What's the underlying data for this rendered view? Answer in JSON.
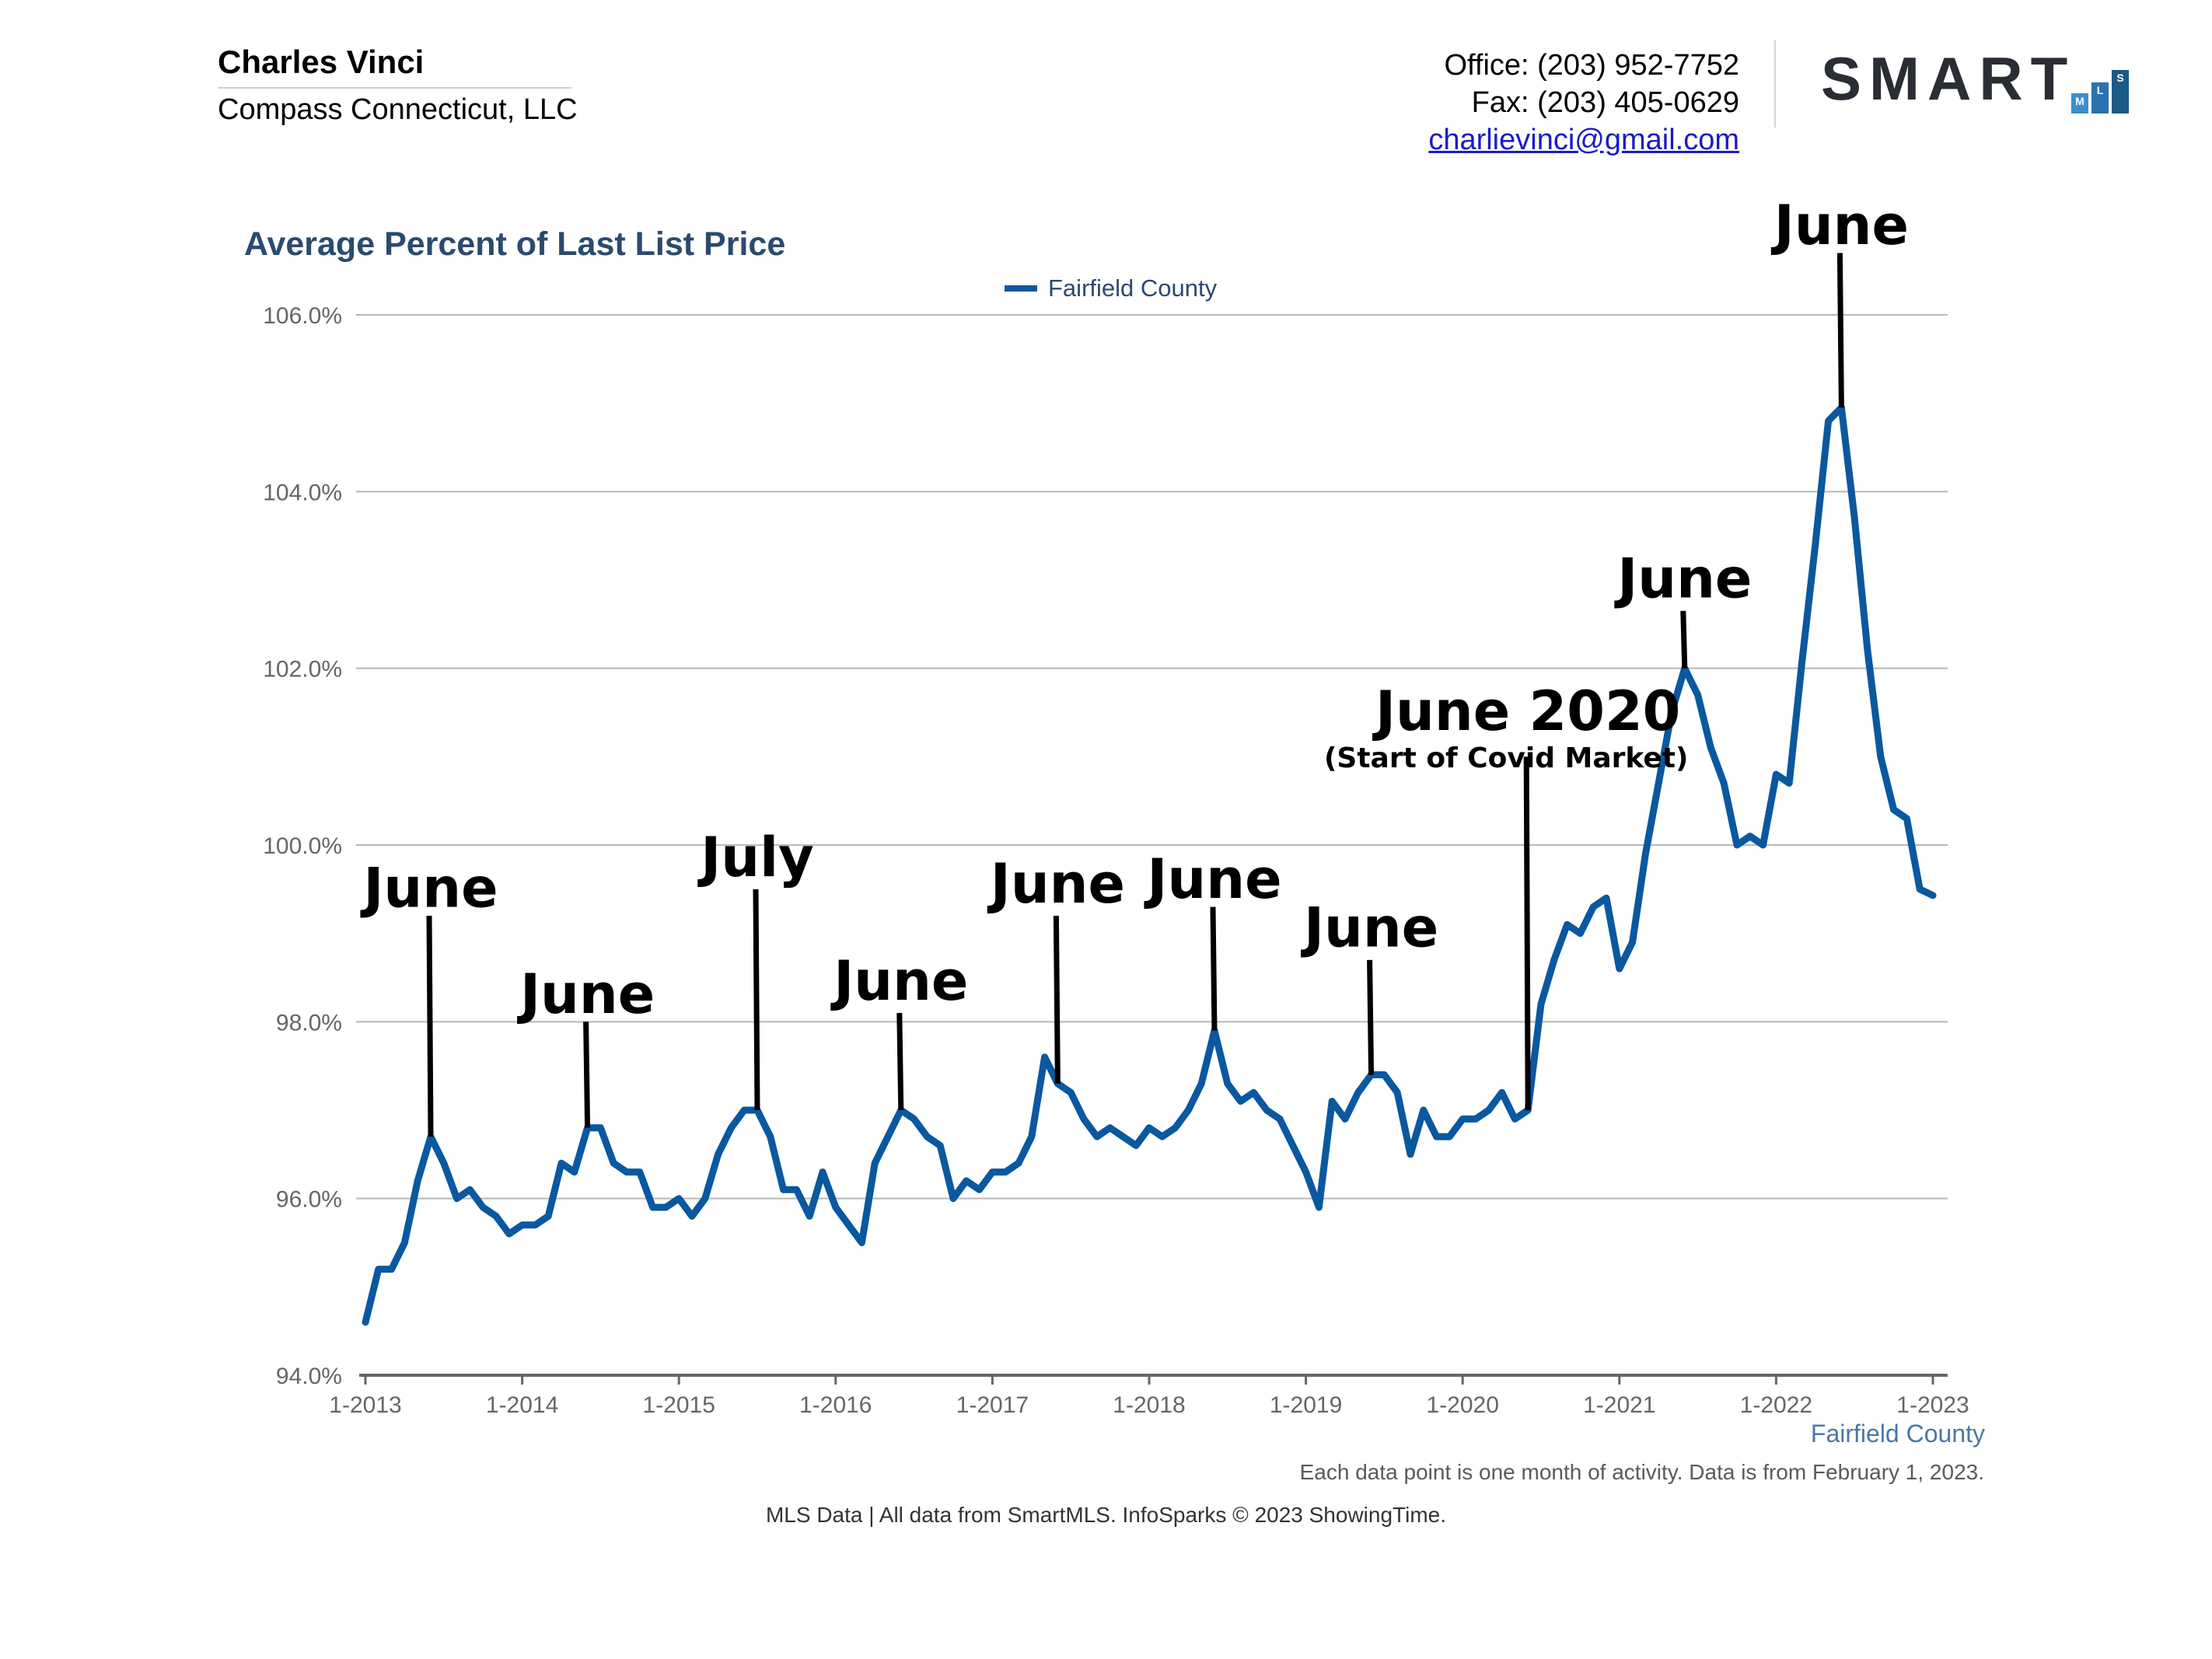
{
  "header": {
    "agent_name": "Charles Vinci",
    "company": "Compass Connecticut, LLC",
    "office": "Office: (203) 952-7752",
    "fax": "Fax: (203) 405-0629",
    "email": "charlievinci@gmail.com",
    "logo_text": "SMART",
    "logo_letters": [
      "M",
      "L",
      "S"
    ]
  },
  "colors": {
    "series": "#0a58a0",
    "title": "#2b4a6e",
    "grid": "#b8b8b8",
    "annotation": "#000000"
  },
  "chart_data": {
    "type": "line",
    "title": "Average Percent of Last List Price",
    "legend": "Fairfield County",
    "legend_position": "top-center",
    "xlabel": "Fairfield County",
    "ylim": [
      94,
      106
    ],
    "y_ticks": [
      "94.0%",
      "96.0%",
      "98.0%",
      "100.0%",
      "102.0%",
      "104.0%",
      "106.0%"
    ],
    "x_ticks": [
      "1-2013",
      "1-2014",
      "1-2015",
      "1-2016",
      "1-2017",
      "1-2018",
      "1-2019",
      "1-2020",
      "1-2021",
      "1-2022",
      "1-2023"
    ],
    "grid": true,
    "x_start": "1-2013",
    "series": [
      {
        "name": "Fairfield County",
        "values": [
          94.6,
          95.2,
          95.2,
          95.5,
          96.2,
          96.7,
          96.4,
          96.0,
          96.1,
          95.9,
          95.8,
          95.6,
          95.7,
          95.7,
          95.8,
          96.4,
          96.3,
          96.8,
          96.8,
          96.4,
          96.3,
          96.3,
          95.9,
          95.9,
          96.0,
          95.8,
          96.0,
          96.5,
          96.8,
          97.0,
          97.0,
          96.7,
          96.1,
          96.1,
          95.8,
          96.3,
          95.9,
          95.7,
          95.5,
          96.4,
          96.7,
          97.0,
          96.9,
          96.7,
          96.6,
          96.0,
          96.2,
          96.1,
          96.3,
          96.3,
          96.4,
          96.7,
          97.6,
          97.3,
          97.2,
          96.9,
          96.7,
          96.8,
          96.7,
          96.6,
          96.8,
          96.7,
          96.8,
          97.0,
          97.3,
          97.9,
          97.3,
          97.1,
          97.2,
          97.0,
          96.9,
          96.6,
          96.3,
          95.9,
          97.1,
          96.9,
          97.2,
          97.4,
          97.4,
          97.2,
          96.5,
          97.0,
          96.7,
          96.7,
          96.9,
          96.9,
          97.0,
          97.2,
          96.9,
          97.0,
          98.2,
          98.7,
          99.1,
          99.0,
          99.3,
          99.4,
          98.6,
          98.9,
          99.9,
          100.7,
          101.5,
          102.0,
          101.7,
          101.1,
          100.7,
          100.0,
          100.1,
          100.0,
          100.8,
          100.7,
          102.1,
          103.4,
          104.8,
          104.95,
          103.7,
          102.2,
          101.0,
          100.4,
          100.3,
          99.5,
          99.43
        ]
      }
    ],
    "annotations": [
      {
        "label": "June",
        "index": 5,
        "label_value": 99.3,
        "line_top": 99.2
      },
      {
        "label": "June",
        "index": 17,
        "label_value": 98.1,
        "line_top": 98.0
      },
      {
        "label": "July",
        "index": 30,
        "label_value": 99.65,
        "line_top": 99.5
      },
      {
        "label": "June",
        "index": 41,
        "label_value": 98.25,
        "line_top": 98.1
      },
      {
        "label": "June",
        "index": 53,
        "label_value": 99.35,
        "line_top": 99.2
      },
      {
        "label": "June",
        "index": 65,
        "label_value": 99.4,
        "line_top": 99.3
      },
      {
        "label": "June",
        "index": 77,
        "label_value": 98.85,
        "line_top": 98.7
      },
      {
        "label": "June 2020",
        "sublabel": "(Start of Covid Market)",
        "index": 89,
        "label_value": 101.3,
        "line_top": 101.0
      },
      {
        "label": "June",
        "index": 101,
        "label_value": 102.8,
        "line_top": 102.65
      },
      {
        "label": "June",
        "index": 113,
        "label_value": 106.8,
        "line_top": 106.7
      }
    ],
    "footnote": "Each data point is one month of activity. Data is from February 1, 2023."
  },
  "footer": {
    "source": "MLS Data | All data from SmartMLS. InfoSparks © 2023 ShowingTime."
  }
}
